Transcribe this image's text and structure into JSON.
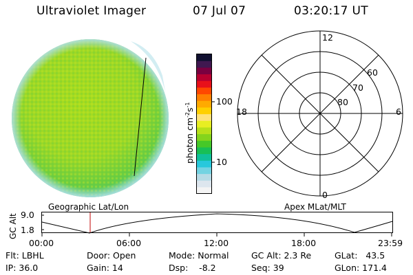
{
  "header": {
    "instrument": "Ultraviolet Imager",
    "date": "07 Jul 07",
    "time": "03:20:17 UT"
  },
  "colorbar": {
    "unit_label": "photon cm",
    "unit_exp1": "-2",
    "unit_s": "s",
    "unit_exp2": "-1",
    "tick_labels": [
      "100",
      "10"
    ],
    "colors": [
      "#f4f4f4",
      "#dde6ee",
      "#b7dbe6",
      "#74d3e2",
      "#28c8dc",
      "#10c09a",
      "#18bf55",
      "#46c828",
      "#84d41c",
      "#b8e01a",
      "#e8ee22",
      "#ffe27a",
      "#ffd000",
      "#ffaa00",
      "#ff8000",
      "#ff4800",
      "#e8101a",
      "#b80030",
      "#7a0040",
      "#401850",
      "#101030"
    ]
  },
  "polar": {
    "mlt_labels": {
      "top": "12",
      "right": "6",
      "bottom": "0",
      "left": "18"
    },
    "lat_labels": [
      "60",
      "70",
      "80"
    ]
  },
  "timeline": {
    "y_axis_label": "GC Alt",
    "y_ticks": [
      "9.0",
      "1.8"
    ],
    "left_label": "Geographic Lat/Lon",
    "right_label": "Apex MLat/MLT",
    "x_ticks": [
      "00:00",
      "06:00",
      "12:00",
      "18:00",
      "23:59"
    ],
    "current_marker_color": "#c00000"
  },
  "info": {
    "flt": "Flt: LBHL",
    "ip": "IP: 36.0",
    "door": "Door: Open",
    "gain": "Gain: 14",
    "mode": "Mode: Normal",
    "dsp": "Dsp:    -8.2",
    "gcalt": "GC Alt: 2.3 Re",
    "seq": "Seq: 39",
    "glat": "GLat:   43.5",
    "glon": "GLon: 171.4"
  }
}
